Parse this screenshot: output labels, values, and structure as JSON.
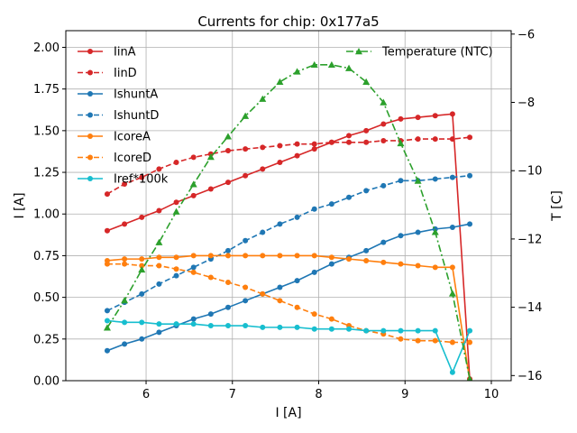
{
  "chart_data": {
    "type": "line",
    "title": "Currents for chip: 0x177a5",
    "xlabel": "I [A]",
    "ylabel": "I [A]",
    "y2label": "T [C]",
    "xlim": [
      5.07,
      10.23
    ],
    "ylim": [
      0,
      2.1
    ],
    "y2lim": [
      -16.15,
      -5.9
    ],
    "xticks": [
      6,
      7,
      8,
      9,
      10
    ],
    "yticks": [
      0.0,
      0.25,
      0.5,
      0.75,
      1.0,
      1.25,
      1.5,
      1.75,
      2.0
    ],
    "y2ticks": [
      -16,
      -14,
      -12,
      -10,
      -8,
      -6
    ],
    "grid": true,
    "legend_placement": "top-left",
    "legend2_placement": "top-right",
    "x": [
      5.55,
      5.75,
      5.95,
      6.15,
      6.35,
      6.55,
      6.75,
      6.95,
      7.15,
      7.35,
      7.55,
      7.75,
      7.95,
      8.15,
      8.35,
      8.55,
      8.75,
      8.95,
      9.15,
      9.35,
      9.55,
      9.75
    ],
    "series": [
      {
        "name": "IinA",
        "color": "#d62728",
        "dash": "solid",
        "axis": "left",
        "values": [
          0.9,
          0.94,
          0.98,
          1.02,
          1.07,
          1.11,
          1.15,
          1.19,
          1.23,
          1.27,
          1.31,
          1.35,
          1.39,
          1.43,
          1.47,
          1.5,
          1.54,
          1.57,
          1.58,
          1.59,
          1.6,
          0.01
        ]
      },
      {
        "name": "IinD",
        "color": "#d62728",
        "dash": "dashed",
        "axis": "left",
        "values": [
          1.12,
          1.18,
          1.22,
          1.27,
          1.31,
          1.34,
          1.36,
          1.38,
          1.39,
          1.4,
          1.41,
          1.42,
          1.42,
          1.43,
          1.43,
          1.43,
          1.44,
          1.44,
          1.45,
          1.45,
          1.45,
          1.46
        ]
      },
      {
        "name": "IshuntA",
        "color": "#1f77b4",
        "dash": "solid",
        "axis": "left",
        "values": [
          0.18,
          0.22,
          0.25,
          0.29,
          0.33,
          0.37,
          0.4,
          0.44,
          0.48,
          0.52,
          0.56,
          0.6,
          0.65,
          0.7,
          0.74,
          0.78,
          0.83,
          0.87,
          0.89,
          0.91,
          0.92,
          0.94
        ]
      },
      {
        "name": "IshuntD",
        "color": "#1f77b4",
        "dash": "dashed",
        "axis": "left",
        "values": [
          0.42,
          0.47,
          0.52,
          0.58,
          0.63,
          0.68,
          0.73,
          0.78,
          0.84,
          0.89,
          0.94,
          0.98,
          1.03,
          1.06,
          1.1,
          1.14,
          1.17,
          1.2,
          1.2,
          1.21,
          1.22,
          1.23
        ]
      },
      {
        "name": "IcoreA",
        "color": "#ff7f0e",
        "dash": "solid",
        "axis": "left",
        "values": [
          0.72,
          0.73,
          0.73,
          0.74,
          0.74,
          0.75,
          0.75,
          0.75,
          0.75,
          0.75,
          0.75,
          0.75,
          0.75,
          0.74,
          0.73,
          0.72,
          0.71,
          0.7,
          0.69,
          0.68,
          0.68,
          0.0
        ]
      },
      {
        "name": "IcoreD",
        "color": "#ff7f0e",
        "dash": "dashed",
        "axis": "left",
        "values": [
          0.7,
          0.7,
          0.69,
          0.69,
          0.67,
          0.65,
          0.62,
          0.59,
          0.56,
          0.52,
          0.48,
          0.44,
          0.4,
          0.37,
          0.33,
          0.3,
          0.28,
          0.25,
          0.24,
          0.24,
          0.23,
          0.23
        ]
      },
      {
        "name": "Iref*100k",
        "color": "#17becf",
        "dash": "solid",
        "axis": "left",
        "values": [
          0.36,
          0.35,
          0.35,
          0.34,
          0.34,
          0.34,
          0.33,
          0.33,
          0.33,
          0.32,
          0.32,
          0.32,
          0.31,
          0.31,
          0.31,
          0.3,
          0.3,
          0.3,
          0.3,
          0.3,
          0.05,
          0.3
        ]
      },
      {
        "name": "Temperature (NTC)",
        "color": "#2ca02c",
        "dash": "dashdot",
        "axis": "right",
        "marker": "triangle",
        "values": [
          -14.6,
          -13.8,
          -12.9,
          -12.1,
          -11.2,
          -10.4,
          -9.6,
          -9.0,
          -8.4,
          -7.9,
          -7.4,
          -7.1,
          -6.9,
          -6.9,
          -7.0,
          -7.4,
          -8.0,
          -9.2,
          -10.3,
          -11.8,
          -13.6,
          -16.1
        ]
      }
    ]
  }
}
